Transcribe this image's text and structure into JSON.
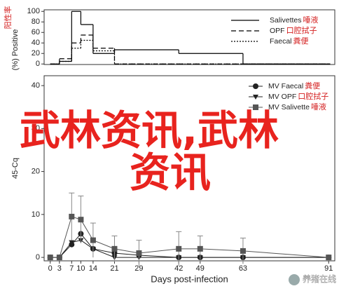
{
  "chart_data": [
    {
      "type": "step",
      "ylabel": "(%) Positive",
      "ylabel_annotation": "阳性率",
      "x": [
        0,
        3,
        7,
        10,
        14,
        21,
        42,
        63
      ],
      "xlim": [
        -2,
        93
      ],
      "ylim": [
        -1,
        103
      ],
      "yticks": [
        0,
        20,
        40,
        60,
        80,
        100
      ],
      "legend": "top-right",
      "series": [
        {
          "name": "Salivettes",
          "annotation": "唾液",
          "color": "#000000",
          "dash": "solid",
          "values": [
            0,
            5,
            100,
            75,
            20,
            27,
            20,
            0
          ]
        },
        {
          "name": "OPF",
          "annotation": "口腔拭子",
          "color": "#000000",
          "dash": "dashed",
          "values": [
            0,
            10,
            40,
            55,
            30,
            0,
            0,
            0
          ]
        },
        {
          "name": "Faecal",
          "annotation": "粪便",
          "color": "#000000",
          "dash": "dotted",
          "values": [
            0,
            5,
            30,
            45,
            25,
            0,
            0,
            0
          ]
        }
      ]
    },
    {
      "type": "line",
      "xlabel": "Days post-infection",
      "ylabel": "45-Cq",
      "x": [
        0,
        3,
        7,
        10,
        14,
        21,
        29,
        42,
        49,
        63,
        91
      ],
      "xlim": [
        -2,
        93
      ],
      "xticks": [
        0,
        3,
        7,
        10,
        14,
        21,
        29,
        42,
        49,
        63,
        91
      ],
      "ylim": [
        -0.8,
        42.3
      ],
      "yticks": [
        0,
        10,
        20,
        30,
        40
      ],
      "legend": "top-right",
      "series": [
        {
          "name": "MV Faecal",
          "annotation": "粪便",
          "marker": "circle",
          "color": "#222222",
          "values": [
            0,
            0,
            3,
            5.5,
            2,
            1,
            0.5,
            0,
            0,
            0,
            0
          ]
        },
        {
          "name": "MV OPF",
          "annotation": "口腔拭子",
          "marker": "triangle",
          "color": "#222222",
          "values": [
            0,
            0,
            3.5,
            4,
            2,
            0,
            0,
            0,
            0,
            0,
            0
          ]
        },
        {
          "name": "MV Salivette",
          "annotation": "唾液",
          "marker": "square",
          "color": "#555555",
          "values": [
            0,
            0,
            9.5,
            8.8,
            4,
            2,
            1,
            2,
            2,
            1.5,
            0
          ],
          "errors": [
            0,
            0,
            5.5,
            5.5,
            4,
            3,
            3,
            4,
            3,
            3,
            0
          ]
        }
      ]
    }
  ],
  "overlay": {
    "lines": [
      "武林资讯,武林",
      "资讯"
    ]
  },
  "watermark": "养猪在线"
}
